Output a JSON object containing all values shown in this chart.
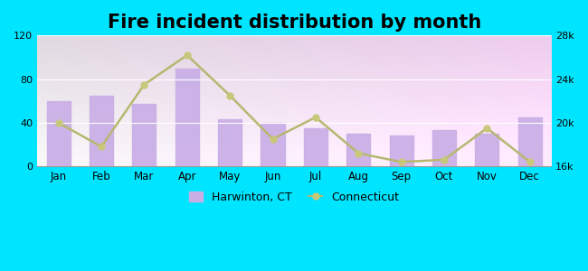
{
  "title": "Fire incident distribution by month",
  "months": [
    "Jan",
    "Feb",
    "Mar",
    "Apr",
    "May",
    "Jun",
    "Jul",
    "Aug",
    "Sep",
    "Oct",
    "Nov",
    "Dec"
  ],
  "harwinton_values": [
    60,
    65,
    57,
    90,
    43,
    40,
    35,
    30,
    28,
    33,
    30,
    45
  ],
  "connecticut_values": [
    20000,
    17800,
    23500,
    26200,
    22500,
    18500,
    20500,
    17200,
    16400,
    16600,
    19500,
    16400
  ],
  "bar_color": "#c9aee6",
  "line_color": "#b5b870",
  "marker_color": "#c8c87a",
  "outer_bg": "#00e5ff",
  "ylim_left": [
    0,
    120
  ],
  "ylim_right": [
    16000,
    28000
  ],
  "yticks_left": [
    0,
    40,
    80,
    120
  ],
  "yticks_right": [
    16000,
    20000,
    24000,
    28000
  ],
  "ytick_labels_right": [
    "16k",
    "20k",
    "24k",
    "28k"
  ],
  "title_fontsize": 15,
  "legend_label_harwinton": "Harwinton, CT",
  "legend_label_connecticut": "Connecticut"
}
